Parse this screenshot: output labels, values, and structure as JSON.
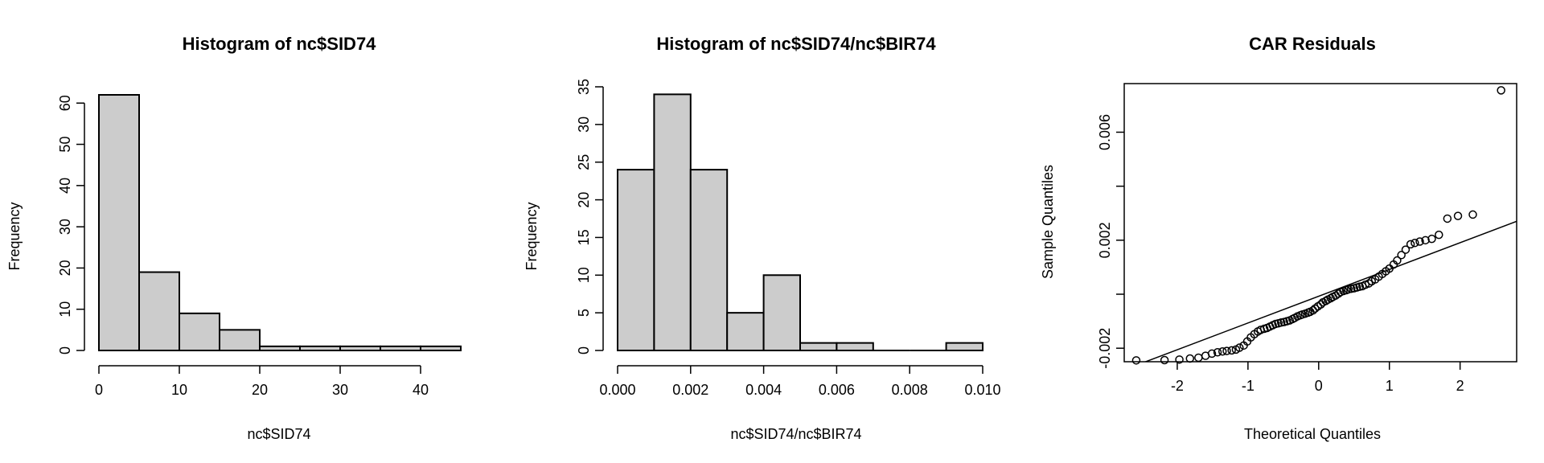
{
  "chart_data": [
    {
      "type": "bar",
      "title": "Histogram of nc$SID74",
      "xlabel": "nc$SID74",
      "ylabel": "Frequency",
      "bin_edges": [
        0,
        5,
        10,
        15,
        20,
        25,
        30,
        35,
        40,
        45
      ],
      "values": [
        62,
        19,
        9,
        5,
        1,
        1,
        1,
        1,
        1
      ],
      "xlim": [
        0,
        45
      ],
      "ylim": [
        0,
        62
      ],
      "x_ticks": [
        0,
        10,
        20,
        30,
        40
      ],
      "y_ticks": [
        0,
        10,
        20,
        30,
        40,
        50,
        60
      ],
      "bar_fill": "#cccccc",
      "grid": false
    },
    {
      "type": "bar",
      "title": "Histogram of nc$SID74/nc$BIR74",
      "xlabel": "nc$SID74/nc$BIR74",
      "ylabel": "Frequency",
      "bin_edges": [
        0.0,
        0.001,
        0.002,
        0.003,
        0.004,
        0.005,
        0.006,
        0.007,
        0.008,
        0.009,
        0.01
      ],
      "values": [
        24,
        34,
        24,
        5,
        10,
        1,
        1,
        0,
        0,
        1
      ],
      "xlim": [
        0.0,
        0.01
      ],
      "ylim": [
        0,
        35
      ],
      "x_ticks": [
        "0.000",
        "0.002",
        "0.004",
        "0.006",
        "0.008",
        "0.010"
      ],
      "y_ticks": [
        0,
        5,
        10,
        15,
        20,
        25,
        30,
        35
      ],
      "bar_fill": "#cccccc",
      "grid": false
    },
    {
      "type": "scatter",
      "title": "CAR Residuals",
      "xlabel": "Theoretical Quantiles",
      "ylabel": "Sample Quantiles",
      "xlim": [
        -2.75,
        2.8
      ],
      "ylim": [
        -0.0025,
        0.0078
      ],
      "x_ticks": [
        -2,
        -1,
        0,
        1,
        2
      ],
      "y_ticks": [
        "-0.002",
        "0.002",
        "0.006"
      ],
      "y_ticks_unlabeled": [
        0.0,
        0.004
      ],
      "reference_line": {
        "x": [
          -2.75,
          2.8
        ],
        "y": [
          -0.0028,
          0.0027
        ]
      },
      "points": [
        [
          -2.58,
          -0.00245
        ],
        [
          -2.18,
          -0.00244
        ],
        [
          -1.97,
          -0.00242
        ],
        [
          -1.82,
          -0.00238
        ],
        [
          -1.7,
          -0.00235
        ],
        [
          -1.6,
          -0.00228
        ],
        [
          -1.51,
          -0.0022
        ],
        [
          -1.43,
          -0.00215
        ],
        [
          -1.36,
          -0.00212
        ],
        [
          -1.3,
          -0.0021
        ],
        [
          -1.23,
          -0.00208
        ],
        [
          -1.17,
          -0.00205
        ],
        [
          -1.12,
          -0.00198
        ],
        [
          -1.06,
          -0.0019
        ],
        [
          -1.01,
          -0.00175
        ],
        [
          -0.96,
          -0.0016
        ],
        [
          -0.91,
          -0.00148
        ],
        [
          -0.86,
          -0.00138
        ],
        [
          -0.82,
          -0.00132
        ],
        [
          -0.77,
          -0.00128
        ],
        [
          -0.73,
          -0.00125
        ],
        [
          -0.69,
          -0.0012
        ],
        [
          -0.65,
          -0.00115
        ],
        [
          -0.61,
          -0.0011
        ],
        [
          -0.57,
          -0.00108
        ],
        [
          -0.53,
          -0.00105
        ],
        [
          -0.49,
          -0.00103
        ],
        [
          -0.45,
          -0.001
        ],
        [
          -0.41,
          -0.00097
        ],
        [
          -0.37,
          -0.00092
        ],
        [
          -0.34,
          -0.00088
        ],
        [
          -0.3,
          -0.00082
        ],
        [
          -0.26,
          -0.00078
        ],
        [
          -0.23,
          -0.00075
        ],
        [
          -0.19,
          -0.00072
        ],
        [
          -0.15,
          -0.00068
        ],
        [
          -0.12,
          -0.00065
        ],
        [
          -0.08,
          -0.0006
        ],
        [
          -0.05,
          -0.00053
        ],
        [
          -0.01,
          -0.00045
        ],
        [
          0.03,
          -0.00038
        ],
        [
          0.06,
          -0.0003
        ],
        [
          0.1,
          -0.00025
        ],
        [
          0.13,
          -0.0002
        ],
        [
          0.17,
          -0.00015
        ],
        [
          0.2,
          -0.0001
        ],
        [
          0.24,
          -5e-05
        ],
        [
          0.28,
          2e-05
        ],
        [
          0.31,
          8e-05
        ],
        [
          0.35,
          0.00012
        ],
        [
          0.39,
          0.00015
        ],
        [
          0.42,
          0.00018
        ],
        [
          0.46,
          0.0002
        ],
        [
          0.5,
          0.00022
        ],
        [
          0.54,
          0.00025
        ],
        [
          0.58,
          0.00028
        ],
        [
          0.62,
          0.0003
        ],
        [
          0.66,
          0.00035
        ],
        [
          0.71,
          0.0004
        ],
        [
          0.75,
          0.00048
        ],
        [
          0.8,
          0.00055
        ],
        [
          0.85,
          0.00065
        ],
        [
          0.9,
          0.00075
        ],
        [
          0.95,
          0.00085
        ],
        [
          1.0,
          0.00095
        ],
        [
          1.06,
          0.0011
        ],
        [
          1.11,
          0.00125
        ],
        [
          1.17,
          0.00145
        ],
        [
          1.23,
          0.00165
        ],
        [
          1.3,
          0.00185
        ],
        [
          1.36,
          0.0019
        ],
        [
          1.43,
          0.00195
        ],
        [
          1.51,
          0.002
        ],
        [
          1.6,
          0.00205
        ],
        [
          1.7,
          0.0022
        ],
        [
          1.82,
          0.0028
        ],
        [
          1.97,
          0.0029
        ],
        [
          2.18,
          0.00295
        ],
        [
          2.58,
          0.00755
        ]
      ],
      "grid": false
    }
  ]
}
